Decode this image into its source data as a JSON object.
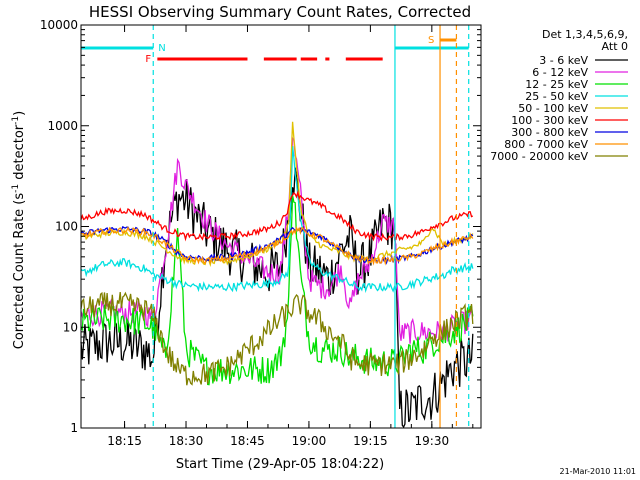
{
  "chart_data": {
    "type": "line",
    "title": "HESSI Observing Summary Count Rates, Corrected",
    "xlabel": "Start Time (29-Apr-05 18:04:22)",
    "ylabel": "Corrected Count Rate (s⁻¹ detector⁻¹)",
    "ylabel_main": "Corrected Count Rate (s",
    "ylabel_sup1": "-1",
    "ylabel_mid": " detector",
    "ylabel_sup2": "-1",
    "ylabel_end": ")",
    "yscale": "log",
    "xlim": [
      "18:04:22",
      "19:42:00"
    ],
    "ylim": [
      1,
      10000
    ],
    "x_ticks": [
      "18:15",
      "18:30",
      "18:45",
      "19:00",
      "19:15",
      "19:30"
    ],
    "y_ticks": [
      "1",
      "10",
      "100",
      "1000",
      "10000"
    ],
    "legend_header": [
      "Det 1,3,4,5,6,9,",
      "Att 0"
    ],
    "legend_placement": "right",
    "timestamp": "21-Mar-2010 11:01",
    "flag_labels": {
      "night": "N",
      "flare": "F",
      "saa": "S"
    },
    "x_key": [
      "18:05",
      "18:10",
      "18:15",
      "18:20",
      "18:22",
      "18:25",
      "18:28",
      "18:30",
      "18:35",
      "18:40",
      "18:45",
      "18:50",
      "18:53",
      "18:55",
      "18:56",
      "18:58",
      "19:00",
      "19:03",
      "19:05",
      "19:08",
      "19:10",
      "19:12",
      "19:15",
      "19:18",
      "19:21",
      "19:22",
      "19:25",
      "19:28",
      "19:30",
      "19:33",
      "19:35",
      "19:40"
    ],
    "series": [
      {
        "name": "3 - 6 keV",
        "color": "#000000",
        "dy": 0.25,
        "values": [
          6,
          7,
          7,
          6,
          5,
          70,
          200,
          180,
          90,
          60,
          45,
          35,
          40,
          120,
          380,
          150,
          40,
          35,
          30,
          60,
          80,
          35,
          50,
          110,
          100,
          1.5,
          1.5,
          2,
          2,
          3,
          4,
          5
        ]
      },
      {
        "name": "6 - 12 keV",
        "color": "#e020e0",
        "dy": 0.12,
        "values": [
          13,
          14,
          14,
          14,
          12,
          60,
          420,
          250,
          110,
          65,
          48,
          35,
          35,
          150,
          800,
          200,
          30,
          25,
          25,
          40,
          15,
          30,
          45,
          110,
          100,
          8.5,
          9,
          9,
          9,
          9,
          10,
          12
        ]
      },
      {
        "name": "12 - 25 keV",
        "color": "#00e000",
        "dy": 0.15,
        "values": [
          11,
          12,
          12,
          11,
          10,
          5,
          90,
          6,
          3.8,
          3.8,
          3.8,
          3.8,
          5,
          14,
          280,
          30,
          8,
          6,
          6,
          6,
          5,
          5,
          4.5,
          4.5,
          4.5,
          4.5,
          6,
          6,
          7,
          8,
          9,
          12
        ]
      },
      {
        "name": "25 - 50 keV",
        "color": "#00e0e0",
        "dy": 0.04,
        "values": [
          35,
          42,
          44,
          38,
          33,
          30,
          27,
          26,
          25,
          25,
          26,
          27,
          30,
          35,
          600,
          120,
          45,
          36,
          33,
          30,
          27,
          25,
          25,
          25,
          25,
          25,
          27,
          29,
          31,
          33,
          37,
          40
        ]
      },
      {
        "name": "50 - 100 keV",
        "color": "#e0c000",
        "dy": 0.03,
        "values": [
          78,
          85,
          88,
          80,
          72,
          60,
          50,
          46,
          44,
          45,
          50,
          60,
          75,
          100,
          1050,
          150,
          80,
          65,
          60,
          55,
          50,
          48,
          47,
          52,
          55,
          58,
          62,
          70,
          100,
          65,
          70,
          80
        ]
      },
      {
        "name": "100 - 300 keV",
        "color": "#ff0000",
        "dy": 0.03,
        "values": [
          120,
          140,
          145,
          130,
          115,
          95,
          85,
          80,
          78,
          80,
          85,
          95,
          110,
          150,
          220,
          200,
          180,
          160,
          140,
          120,
          100,
          88,
          80,
          78,
          78,
          79,
          82,
          90,
          100,
          110,
          120,
          135
        ]
      },
      {
        "name": "300 - 800 keV",
        "color": "#0000e0",
        "dy": 0.03,
        "values": [
          85,
          92,
          95,
          90,
          85,
          70,
          55,
          50,
          48,
          50,
          55,
          65,
          75,
          85,
          92,
          92,
          88,
          80,
          70,
          60,
          52,
          48,
          46,
          46,
          47,
          48,
          50,
          55,
          60,
          65,
          70,
          78
        ]
      },
      {
        "name": "800 - 7000 keV",
        "color": "#ff9000",
        "dy": 0.03,
        "values": [
          82,
          90,
          92,
          88,
          82,
          68,
          55,
          48,
          46,
          48,
          53,
          62,
          72,
          82,
          90,
          92,
          85,
          78,
          68,
          58,
          52,
          48,
          46,
          46,
          47,
          48,
          50,
          55,
          60,
          65,
          70,
          80
        ]
      },
      {
        "name": "7000 - 20000 keV",
        "color": "#808000",
        "dy": 0.12,
        "values": [
          15,
          17,
          17,
          15,
          13,
          6,
          3.8,
          3.4,
          3.4,
          4,
          6,
          9,
          12,
          14,
          16,
          17,
          14,
          11,
          9,
          7,
          5,
          4.3,
          4.3,
          4.3,
          4.3,
          4.3,
          5,
          6,
          8,
          9,
          11,
          14
        ]
      }
    ],
    "spacecraft_night": [
      [
        "18:04:22",
        "18:22:00"
      ],
      [
        "19:21:00",
        "19:39:00"
      ]
    ],
    "flare_flag": [
      [
        "18:23:00",
        "18:45:00"
      ],
      [
        "18:49:00",
        "18:57:00"
      ],
      [
        "18:58:00",
        "19:02:00"
      ],
      [
        "19:04:00",
        "19:05:00"
      ],
      [
        "19:09:00",
        "19:18:00"
      ]
    ],
    "saa_flag": [
      [
        "19:32:00",
        "19:36:00"
      ]
    ],
    "vertical_markers": [
      {
        "time": "18:22:00",
        "color": "#00e0e0",
        "style": "dashed"
      },
      {
        "time": "19:21:00",
        "color": "#00e0e0",
        "style": "solid"
      },
      {
        "time": "19:39:00",
        "color": "#00e0e0",
        "style": "dashed"
      },
      {
        "time": "19:32:00",
        "color": "#ff9000",
        "style": "solid"
      },
      {
        "time": "19:36:00",
        "color": "#ff9000",
        "style": "dashed"
      }
    ]
  }
}
